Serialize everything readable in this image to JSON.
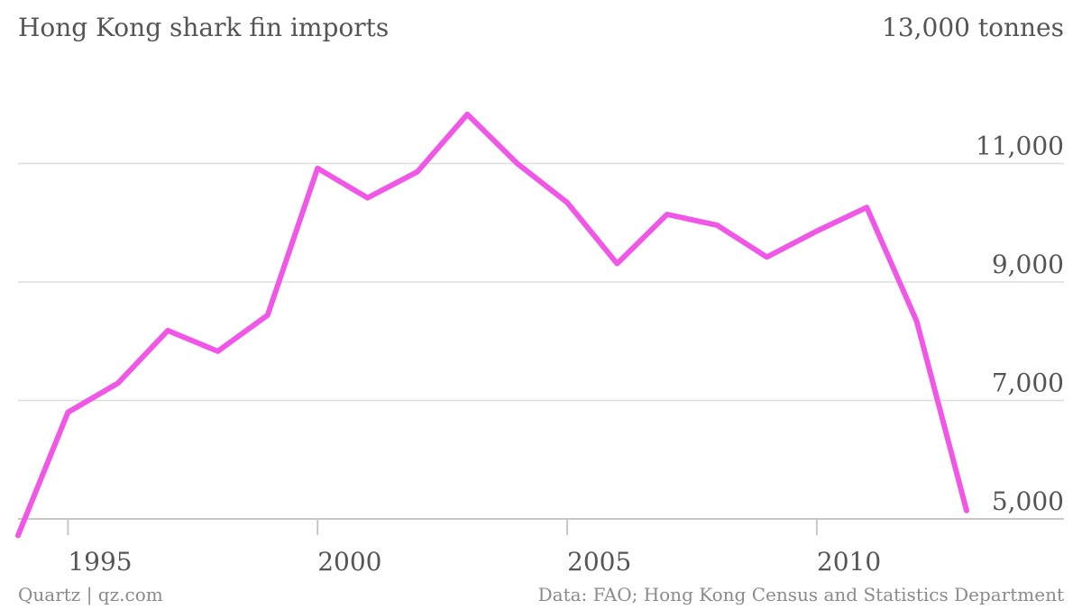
{
  "chart_data": {
    "type": "line",
    "title": "Hong Kong shark fin imports",
    "top_label": "13,000 tonnes",
    "xlabel": "",
    "ylabel": "",
    "x_ticks": [
      1995,
      2000,
      2005,
      2010
    ],
    "x_tick_labels": [
      "1995",
      "2000",
      "2005",
      "2010"
    ],
    "y_ticks": [
      5000,
      7000,
      9000,
      11000
    ],
    "y_tick_labels": [
      "5,000",
      "7,000",
      "9,000",
      "11,000"
    ],
    "xlim": [
      1994,
      2013
    ],
    "ylim": [
      5000,
      13000
    ],
    "grid": true,
    "series": [
      {
        "color": "#f057e6",
        "x": [
          1994,
          1995,
          1996,
          1997,
          1998,
          1999,
          2000,
          2001,
          2002,
          2003,
          2004,
          2005,
          2006,
          2007,
          2008,
          2009,
          2010,
          2011,
          2012,
          2013
        ],
        "values": [
          4720,
          6800,
          7290,
          8180,
          7830,
          8440,
          10920,
          10420,
          10860,
          11830,
          11000,
          10340,
          9310,
          10140,
          9960,
          9420,
          9860,
          10260,
          8340,
          5140
        ]
      }
    ]
  },
  "footer": {
    "source_left": "Quartz | qz.com",
    "source_right": "Data: FAO; Hong Kong Census and Statistics Department"
  }
}
